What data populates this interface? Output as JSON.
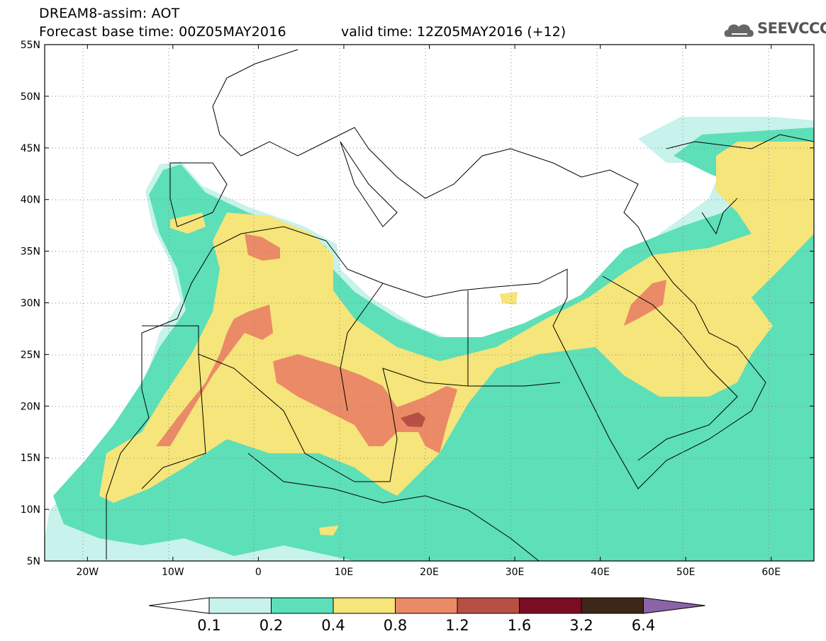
{
  "title": {
    "line1": "DREAM8-assim: AOT",
    "base": "Forecast base time: 00Z05MAY2016",
    "valid": "valid time: 12Z05MAY2016 (+12)"
  },
  "logo": {
    "text": "SEEVCCC",
    "icon": "cloud-icon"
  },
  "map": {
    "lat_range": [
      5,
      55
    ],
    "lon_range": [
      -25,
      65
    ],
    "lat_ticks": [
      "5N",
      "10N",
      "15N",
      "20N",
      "25N",
      "30N",
      "35N",
      "40N",
      "45N",
      "50N",
      "55N"
    ],
    "lon_ticks": [
      "20W",
      "10W",
      "0",
      "10E",
      "20E",
      "30E",
      "40E",
      "50E",
      "60E"
    ],
    "grid": "dotted"
  },
  "legend": {
    "labels": [
      "0.1",
      "0.2",
      "0.4",
      "0.8",
      "1.2",
      "1.6",
      "3.2",
      "6.4"
    ],
    "colors": [
      "#ffffff",
      "#c8f2ec",
      "#5ddfb8",
      "#f5e57a",
      "#eb8a66",
      "#b84f44",
      "#7b0c24",
      "#3e2718",
      "#8b64a8"
    ]
  }
}
